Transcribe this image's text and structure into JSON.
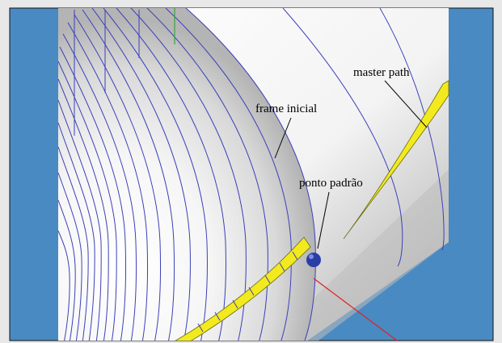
{
  "labels": {
    "master_path": "master path",
    "frame_inicial": "frame inicial",
    "ponto_padrao": "ponto padrão"
  },
  "colors": {
    "viewport_background": "#4a8ac2",
    "frame_border": "#111111",
    "cylinder_surface": "#f0f0f0",
    "frame_lines": "#3a40b8",
    "path_stripe": "#f2ea1e",
    "default_point": "#2a3ea8",
    "axis_red": "#e02020",
    "axis_green": "#3aa63a"
  }
}
